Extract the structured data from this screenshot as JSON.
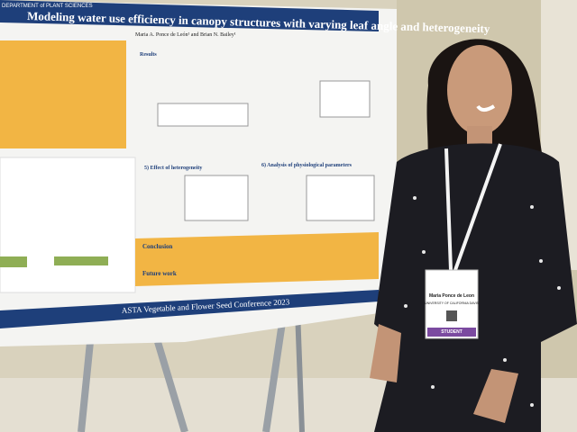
{
  "poster": {
    "department": "DEPARTMENT of PLANT SCIENCES",
    "title": "Modeling water use efficiency in canopy structures with varying leaf angle and heterogeneity",
    "authors": "Maria A. Ponce de León¹ and Brian N. Bailey¹",
    "sections": [
      "Results",
      "5) Effect of heterogeneity",
      "6) Analysis of physiological parameters",
      "Conclusion",
      "Future work"
    ],
    "footer": "ASTA Vegetable and Flower Seed Conference 2023"
  },
  "badge": {
    "name": "Maria Ponce de Leon",
    "affiliation": "UNIVERSITY OF CALIFORNIA DAVIS",
    "role": "STUDENT"
  }
}
